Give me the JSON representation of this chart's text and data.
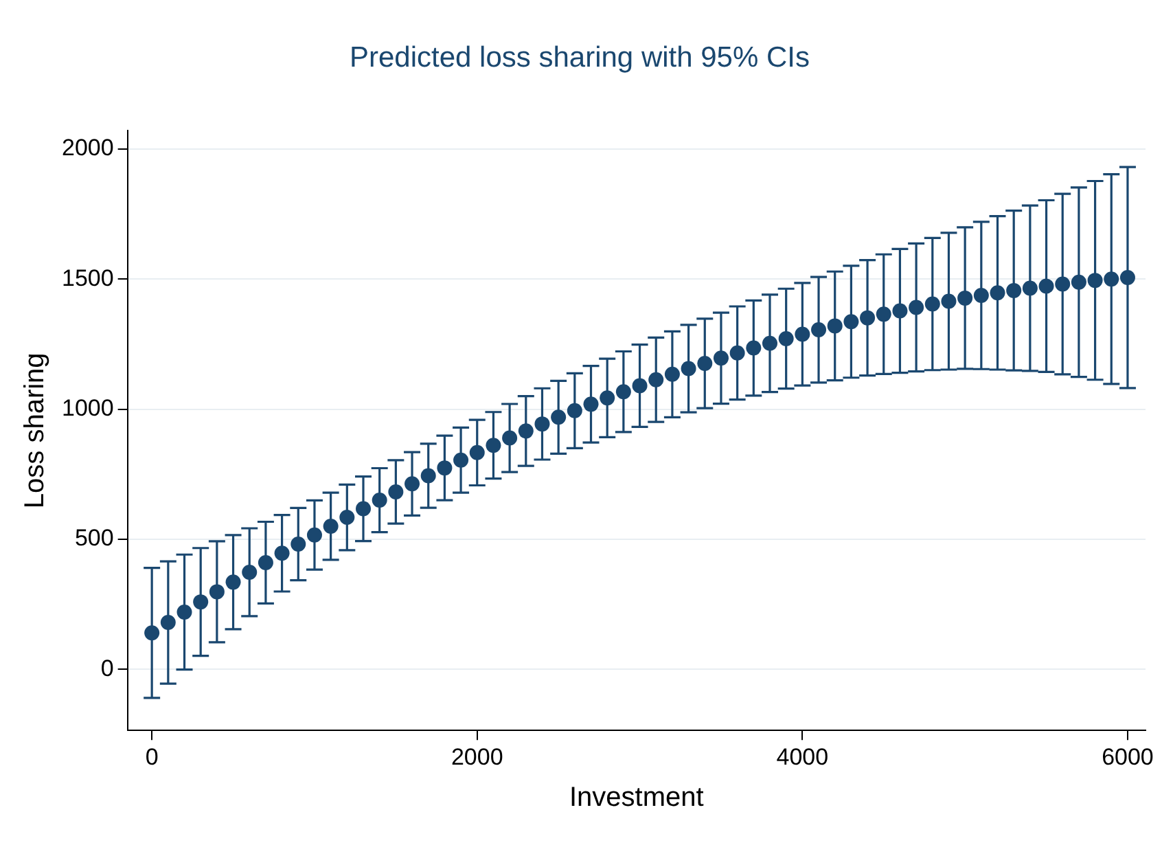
{
  "chart_data": {
    "type": "scatter",
    "title": "Predicted loss sharing with 95% CIs",
    "xlabel": "Investment",
    "ylabel": "Loss sharing",
    "x": [
      0,
      100,
      200,
      300,
      400,
      500,
      600,
      700,
      800,
      900,
      1000,
      1100,
      1200,
      1300,
      1400,
      1500,
      1600,
      1700,
      1800,
      1900,
      2000,
      2100,
      2200,
      2300,
      2400,
      2500,
      2600,
      2700,
      2800,
      2900,
      3000,
      3100,
      3200,
      3300,
      3400,
      3500,
      3600,
      3700,
      3800,
      3900,
      4000,
      4100,
      4200,
      4300,
      4400,
      4500,
      4600,
      4700,
      4800,
      4900,
      5000,
      5100,
      5200,
      5300,
      5400,
      5500,
      5600,
      5700,
      5800,
      5900,
      6000
    ],
    "series": [
      {
        "color": "#1a476f",
        "values": [
          140,
          180,
          220,
          259,
          298,
          335,
          373,
          410,
          446,
          481,
          516,
          550,
          584,
          617,
          650,
          682,
          713,
          744,
          774,
          804,
          833,
          861,
          889,
          916,
          943,
          969,
          994,
          1019,
          1043,
          1067,
          1090,
          1113,
          1134,
          1156,
          1176,
          1196,
          1216,
          1235,
          1253,
          1271,
          1288,
          1305,
          1320,
          1336,
          1351,
          1365,
          1378,
          1391,
          1404,
          1415,
          1427,
          1437,
          1447,
          1456,
          1465,
          1473,
          1481,
          1488,
          1495,
          1500,
          1506
        ],
        "errors": [
          250,
          235,
          221,
          207,
          194,
          181,
          169,
          157,
          147,
          139,
          133,
          129,
          126,
          124,
          123,
          122,
          122,
          123,
          124,
          125,
          126,
          128,
          131,
          134,
          137,
          140,
          144,
          147,
          151,
          155,
          158,
          162,
          165,
          168,
          172,
          175,
          179,
          183,
          187,
          192,
          197,
          203,
          209,
          215,
          222,
          230,
          238,
          246,
          254,
          263,
          272,
          283,
          295,
          307,
          318,
          330,
          347,
          364,
          382,
          403,
          425
        ]
      }
    ],
    "xlim": [
      -150,
      6110
    ],
    "xticks": [
      0,
      2000,
      4000,
      6000
    ],
    "ylim": [
      -235,
      2070
    ],
    "yticks": [
      0,
      500,
      1000,
      1500,
      2000
    ],
    "grid": "y",
    "marker": "circle",
    "legend": false
  }
}
